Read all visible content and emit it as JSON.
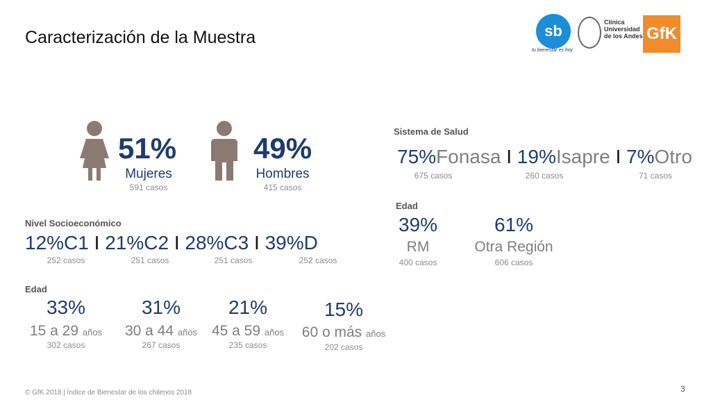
{
  "title": "Caracterización de la Muestra",
  "logos": {
    "sb_text": "sb",
    "sb_tagline": "tu bienestar es hoy",
    "clinica_text": "Clínica\nUniversidad\nde los Andes",
    "gfk_text": "GfK"
  },
  "gender": {
    "women": {
      "pct": "51%",
      "label": "Mujeres",
      "cases": "591 casos"
    },
    "men": {
      "pct": "49%",
      "label": "Hombres",
      "cases": "415 casos"
    }
  },
  "health": {
    "label": "Sistema de Salud",
    "items": [
      {
        "pct": "75%",
        "name": "Fonasa",
        "cases": "675 casos"
      },
      {
        "pct": "19%",
        "name": "Isapre",
        "cases": "260 casos"
      },
      {
        "pct": "7%",
        "name": "Otro",
        "cases": "71 casos"
      }
    ],
    "separator": "I"
  },
  "nse": {
    "label": "Nivel Socioeconómico",
    "items": [
      {
        "pct": "12%",
        "name": "C1",
        "cases": "252 casos"
      },
      {
        "pct": "21%",
        "name": "C2",
        "cases": "251 casos"
      },
      {
        "pct": "28%",
        "name": "C3",
        "cases": "251 casos"
      },
      {
        "pct": "39%",
        "name": "D",
        "cases": "252 casos"
      }
    ],
    "separator": "I"
  },
  "region": {
    "label": "Edad",
    "items": [
      {
        "pct": "39%",
        "name": "RM",
        "cases": "400 casos"
      },
      {
        "pct": "61%",
        "name": "Otra Región",
        "cases": "606 casos"
      }
    ]
  },
  "age": {
    "label": "Edad",
    "items": [
      {
        "pct": "33%",
        "range": "15 a 29",
        "unit": "años",
        "cases": "302 casos"
      },
      {
        "pct": "31%",
        "range": "30 a 44",
        "unit": "años",
        "cases": "267 casos"
      },
      {
        "pct": "21%",
        "range": "45 a 59",
        "unit": "años",
        "cases": "235 casos"
      },
      {
        "pct": "15%",
        "range": "60 o más",
        "unit": "años",
        "cases": "202 casos"
      }
    ]
  },
  "footer": "© GfK 2018 | Índice de Bienestar de los chilenos 2018",
  "page_number": "3",
  "colors": {
    "navy": "#1f3b70",
    "gray": "#7f7f7f",
    "icon": "#8a7a72",
    "gfk_orange": "#f28c2b",
    "sb_blue": "#1a8ed8"
  }
}
